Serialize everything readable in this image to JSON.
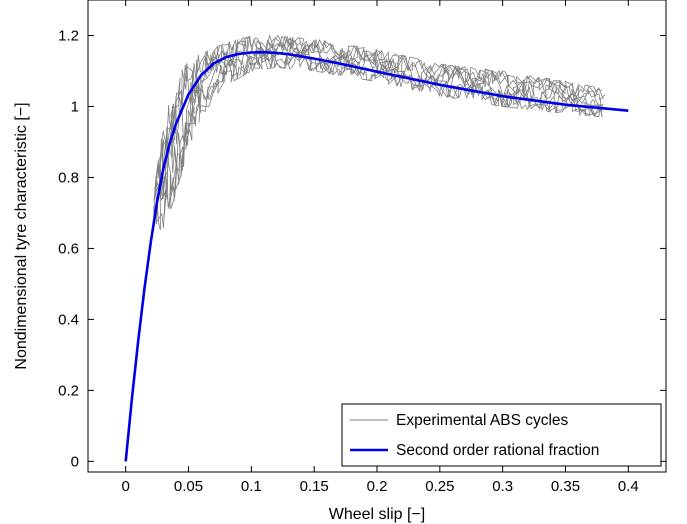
{
  "chart_data": {
    "type": "line",
    "xlabel": "Wheel slip [−]",
    "ylabel": "Nondimensional tyre characteristic [−]",
    "xlim": [
      -0.03,
      0.43
    ],
    "ylim": [
      -0.03,
      1.3
    ],
    "x_ticks": [
      0,
      0.05,
      0.1,
      0.15,
      0.2,
      0.25,
      0.3,
      0.35,
      0.4
    ],
    "x_tick_labels": [
      "0",
      "0.05",
      "0.1",
      "0.15",
      "0.2",
      "0.25",
      "0.3",
      "0.35",
      "0.4"
    ],
    "y_ticks": [
      0,
      0.2,
      0.4,
      0.6,
      0.8,
      1.0,
      1.2
    ],
    "y_tick_labels": [
      "0",
      "0.2",
      "0.4",
      "0.6",
      "0.8",
      "1",
      "1.2"
    ],
    "grid": false,
    "legend_position": "bottom-right",
    "series": [
      {
        "name": "Experimental ABS cycles",
        "color": "#808080",
        "style": "noisy-cycles",
        "x": [
          0.022,
          0.03,
          0.04,
          0.05,
          0.06,
          0.08,
          0.1,
          0.12,
          0.15,
          0.2,
          0.25,
          0.3,
          0.35,
          0.38
        ],
        "y_lower": [
          0.68,
          0.64,
          0.75,
          0.88,
          0.97,
          1.06,
          1.1,
          1.11,
          1.1,
          1.07,
          1.03,
          1.0,
          0.98,
          0.97
        ],
        "y_upper": [
          0.75,
          0.95,
          1.08,
          1.13,
          1.15,
          1.18,
          1.2,
          1.2,
          1.19,
          1.16,
          1.12,
          1.1,
          1.07,
          1.05
        ]
      },
      {
        "name": "Second order rational fraction",
        "color": "#0000e6",
        "x": [
          0,
          0.005,
          0.01,
          0.015,
          0.02,
          0.025,
          0.03,
          0.035,
          0.04,
          0.05,
          0.06,
          0.07,
          0.08,
          0.09,
          0.1,
          0.11,
          0.12,
          0.13,
          0.15,
          0.17,
          0.2,
          0.25,
          0.3,
          0.35,
          0.4
        ],
        "y": [
          0,
          0.179,
          0.342,
          0.488,
          0.618,
          0.731,
          0.826,
          0.896,
          0.951,
          1.034,
          1.088,
          1.121,
          1.139,
          1.148,
          1.152,
          1.153,
          1.151,
          1.147,
          1.135,
          1.121,
          1.098,
          1.061,
          1.029,
          1.005,
          0.988
        ]
      }
    ]
  }
}
